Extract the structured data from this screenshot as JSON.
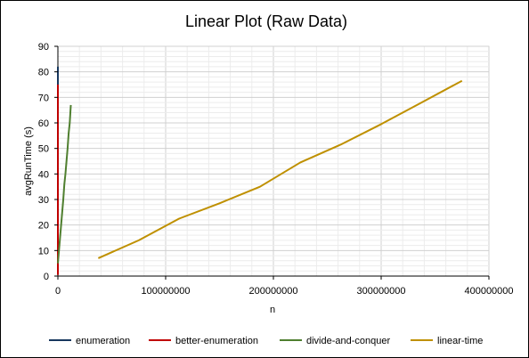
{
  "chart_data": {
    "type": "line",
    "title": "Linear Plot (Raw Data)",
    "xlabel": "n",
    "ylabel": "avgRunTime  (s)",
    "xlim": [
      0,
      400000000
    ],
    "ylim": [
      0,
      90
    ],
    "x_ticks": [
      0,
      100000000,
      200000000,
      300000000,
      400000000
    ],
    "x_tick_labels": [
      "0",
      "100000000",
      "200000000",
      "300000000",
      "400000000"
    ],
    "y_ticks": [
      0,
      10,
      20,
      30,
      40,
      50,
      60,
      70,
      80,
      90
    ],
    "y_tick_labels": [
      "0",
      "10",
      "20",
      "30",
      "40",
      "50",
      "60",
      "70",
      "80",
      "90"
    ],
    "grid": true,
    "legend_position": "bottom",
    "series": [
      {
        "name": "enumeration",
        "color": "#17375e",
        "x": [
          500,
          1000,
          1500,
          2000,
          2500
        ],
        "y": [
          5,
          20,
          40,
          60,
          82
        ]
      },
      {
        "name": "better-enumeration",
        "color": "#c00000",
        "x": [
          1000,
          2000,
          4000,
          6000,
          8000
        ],
        "y": [
          0.5,
          2,
          10,
          35,
          75
        ]
      },
      {
        "name": "divide-and-conquer",
        "color": "#4f7f2f",
        "x": [
          0,
          1000000,
          2000000,
          3000000,
          4000000,
          5000000,
          6000000,
          7000000,
          8000000,
          9000000,
          10000000,
          11000000,
          12000000
        ],
        "y": [
          5,
          10,
          15,
          20,
          25,
          30,
          36,
          40,
          45,
          50,
          56,
          60,
          67
        ]
      },
      {
        "name": "linear-time",
        "color": "#bf9000",
        "x": [
          37500000,
          75000000,
          112500000,
          150000000,
          187500000,
          225000000,
          262500000,
          300000000,
          337500000,
          375000000
        ],
        "y": [
          7,
          14,
          22.5,
          28.5,
          35,
          44.5,
          51.5,
          59.5,
          68,
          76.5
        ]
      }
    ]
  }
}
